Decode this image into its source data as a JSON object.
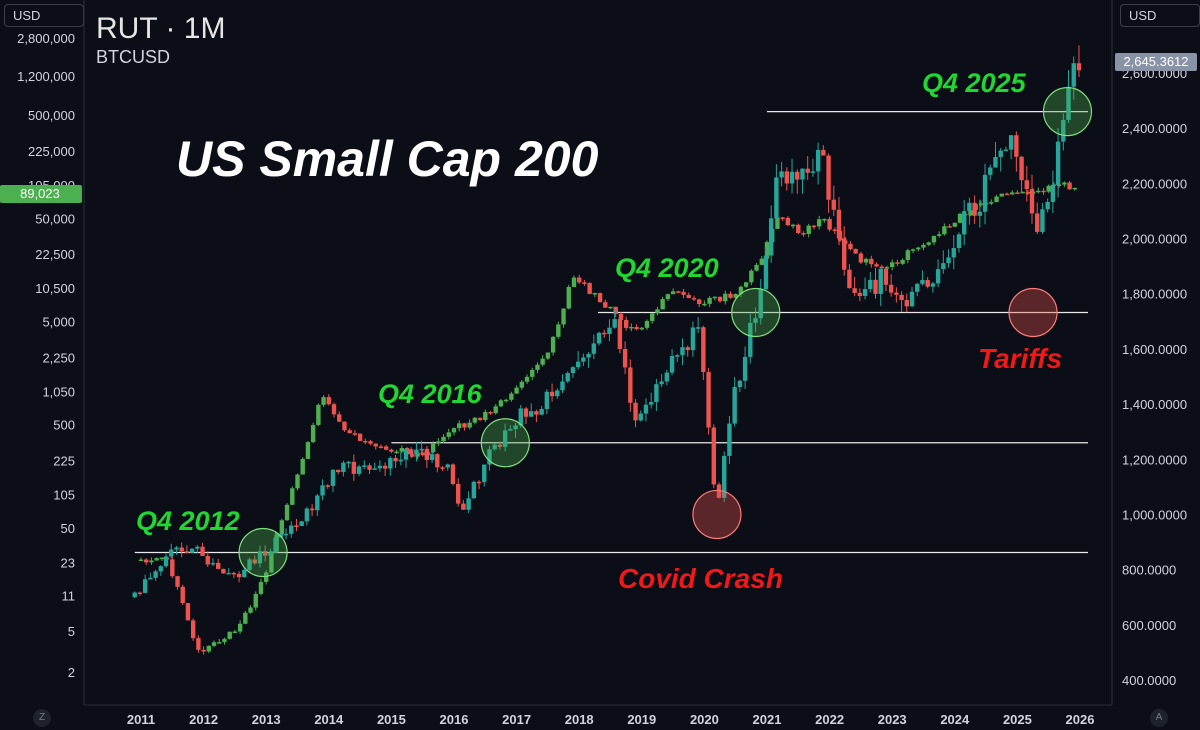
{
  "header": {
    "symbol": "RUT · 1M",
    "subtitle": "BTCUSD"
  },
  "left_axis": {
    "currency": "USD",
    "ticks": [
      "2,800,000",
      "1,200,000",
      "500,000",
      "225,000",
      "105,000",
      "50,000",
      "22,500",
      "10,500",
      "5,000",
      "2,250",
      "1,050",
      "500",
      "225",
      "105",
      "50",
      "23",
      "11",
      "5",
      "2"
    ],
    "price_label": "89,023"
  },
  "right_axis": {
    "currency": "USD",
    "price_label": "2,645.3612"
  },
  "bottom_buttons": {
    "left": "Z",
    "right": "A"
  },
  "colors": {
    "up": "#26a69a",
    "down": "#ef5350",
    "btc_up": "#4caf50",
    "btc_down": "#ef5350",
    "green_annotation": "#22d632",
    "red_annotation": "#f01818",
    "background": "#0b0e16",
    "last_price_bg": "#8a93a6",
    "btc_price_bg": "#4caf50"
  },
  "chart_data": {
    "type": "candlestick",
    "title": "US Small Cap 200",
    "x_axis_years": [
      "2011",
      "2012",
      "2013",
      "2014",
      "2015",
      "2016",
      "2017",
      "2018",
      "2019",
      "2020",
      "2021",
      "2022",
      "2023",
      "2024",
      "2025",
      "2026"
    ],
    "y_axis_right": {
      "ticks": [
        "2,600.0000",
        "2,400.0000",
        "2,200.0000",
        "2,000.0000",
        "1,800.0000",
        "1,600.0000",
        "1,400.0000",
        "1,200.0000",
        "1,000.0000",
        "800.0000",
        "600.0000",
        "400.0000"
      ],
      "range": [
        350,
        2750
      ]
    },
    "y_axis_left_scale": "log",
    "series": [
      {
        "name": "RUT",
        "keypoints": [
          [
            2010.9,
            700
          ],
          [
            2011.4,
            850
          ],
          [
            2011.8,
            880
          ],
          [
            2012.5,
            770
          ],
          [
            2013.0,
            870
          ],
          [
            2013.5,
            960
          ],
          [
            2014.2,
            1180
          ],
          [
            2014.8,
            1160
          ],
          [
            2015.5,
            1240
          ],
          [
            2015.9,
            1160
          ],
          [
            2016.1,
            1000
          ],
          [
            2016.5,
            1190
          ],
          [
            2016.9,
            1330
          ],
          [
            2017.5,
            1420
          ],
          [
            2017.9,
            1550
          ],
          [
            2018.6,
            1700
          ],
          [
            2018.9,
            1340
          ],
          [
            2019.5,
            1560
          ],
          [
            2019.9,
            1660
          ],
          [
            2020.2,
            1020
          ],
          [
            2020.5,
            1460
          ],
          [
            2020.9,
            1800
          ],
          [
            2021.2,
            2250
          ],
          [
            2021.9,
            2280
          ],
          [
            2022.4,
            1760
          ],
          [
            2022.8,
            1850
          ],
          [
            2023.3,
            1770
          ],
          [
            2023.9,
            1950
          ],
          [
            2024.4,
            2150
          ],
          [
            2024.9,
            2400
          ],
          [
            2025.3,
            1980
          ],
          [
            2025.6,
            2280
          ],
          [
            2025.95,
            2650
          ]
        ]
      },
      {
        "name": "BTCUSD",
        "keypoints": [
          [
            2011.0,
            24
          ],
          [
            2011.4,
            28
          ],
          [
            2011.6,
            12
          ],
          [
            2011.9,
            3
          ],
          [
            2012.5,
            5
          ],
          [
            2012.9,
            13
          ],
          [
            2013.3,
            70
          ],
          [
            2013.9,
            1000
          ],
          [
            2014.3,
            420
          ],
          [
            2014.9,
            300
          ],
          [
            2015.5,
            250
          ],
          [
            2015.9,
            430
          ],
          [
            2016.5,
            620
          ],
          [
            2016.9,
            960
          ],
          [
            2017.5,
            2400
          ],
          [
            2017.9,
            14000
          ],
          [
            2018.5,
            6500
          ],
          [
            2018.9,
            3800
          ],
          [
            2019.5,
            10000
          ],
          [
            2019.9,
            7200
          ],
          [
            2020.5,
            9500
          ],
          [
            2020.9,
            19000
          ],
          [
            2021.2,
            58000
          ],
          [
            2021.5,
            35000
          ],
          [
            2021.9,
            48000
          ],
          [
            2022.5,
            20000
          ],
          [
            2022.9,
            16500
          ],
          [
            2023.5,
            29000
          ],
          [
            2023.9,
            42000
          ],
          [
            2024.3,
            64000
          ],
          [
            2024.9,
            96000
          ],
          [
            2025.3,
            84000
          ],
          [
            2025.6,
            115000
          ],
          [
            2025.95,
            89023
          ]
        ]
      }
    ],
    "horizontal_levels": [
      {
        "value": 2460,
        "from": 2021.0
      },
      {
        "value": 1732,
        "from": 2018.3
      },
      {
        "value": 1260,
        "from": 2015.0
      },
      {
        "value": 862,
        "from": 2010.9
      }
    ],
    "annotations": [
      {
        "label": "Q4 2012",
        "type": "breakout",
        "x": 2012.95,
        "y": 862
      },
      {
        "label": "Q4 2016",
        "type": "breakout",
        "x": 2016.82,
        "y": 1260
      },
      {
        "label": "Q4 2020",
        "type": "breakout",
        "x": 2020.82,
        "y": 1732
      },
      {
        "label": "Q4 2025",
        "type": "breakout",
        "x": 2025.8,
        "y": 2460
      },
      {
        "label": "Covid Crash",
        "type": "crash",
        "x": 2020.2,
        "y": 1000
      },
      {
        "label": "Tariffs",
        "type": "crash",
        "x": 2025.25,
        "y": 1732
      }
    ],
    "grid": false
  }
}
